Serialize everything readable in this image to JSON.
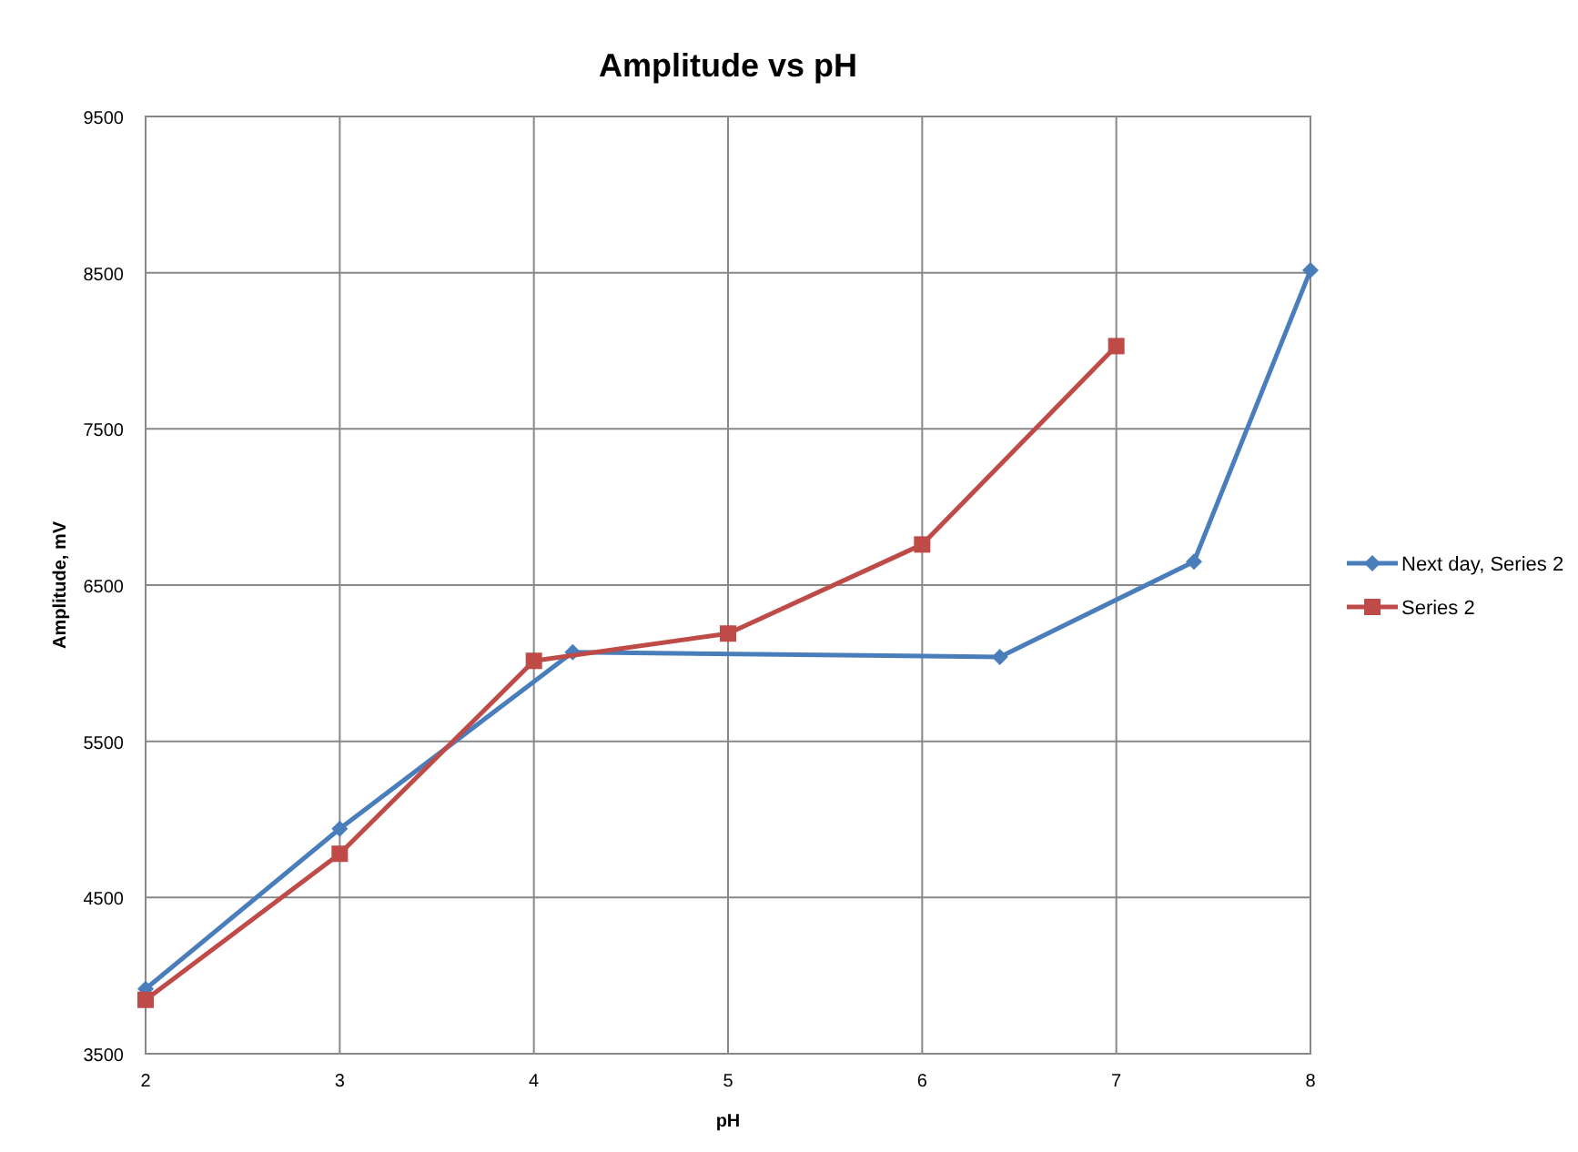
{
  "chart_data": {
    "type": "line",
    "title": "Amplitude vs pH",
    "xlabel": "pH",
    "ylabel": "Amplitude, mV",
    "xlim": [
      2,
      8
    ],
    "xticks": [
      2,
      3,
      4,
      5,
      6,
      7,
      8
    ],
    "ylim": [
      3500,
      9500
    ],
    "yticks": [
      3500,
      4500,
      5500,
      6500,
      7500,
      8500,
      9500
    ],
    "grid": true,
    "legend": "right",
    "line_style": "solid",
    "series": [
      {
        "name": "Next day, Series 2",
        "color": "#4a7ebb",
        "marker": "diamond",
        "x": [
          2,
          3,
          4.2,
          6.4,
          7.4,
          8
        ],
        "values": [
          3915,
          4940,
          6070,
          6040,
          6650,
          8515
        ]
      },
      {
        "name": "Series 2",
        "color": "#be4b48",
        "marker": "square",
        "x": [
          2,
          3,
          4,
          5,
          6,
          7
        ],
        "values": [
          3845,
          4780,
          6015,
          6190,
          6760,
          8030
        ]
      }
    ]
  }
}
